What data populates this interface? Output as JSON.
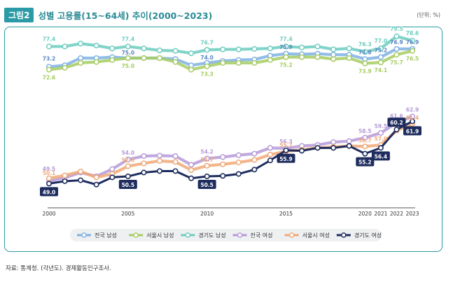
{
  "figure": {
    "badge": "그림2",
    "title": "성별 고용률(15~64세) 추이(2000~2023)",
    "unit": "(단위: %)",
    "source": "자료: 통계청. (각년도). 경제활동인구조사."
  },
  "chart_data": {
    "type": "line",
    "title": "성별 고용률(15~64세) 추이(2000~2023)",
    "unit": "%",
    "x": [
      2000,
      2001,
      2002,
      2003,
      2004,
      2005,
      2006,
      2007,
      2008,
      2009,
      2010,
      2011,
      2012,
      2013,
      2014,
      2015,
      2016,
      2017,
      2018,
      2019,
      2020,
      2021,
      2022,
      2023
    ],
    "xticks": [
      2000,
      2005,
      2010,
      2015,
      2020,
      2021,
      2022,
      2023
    ],
    "ylim": [
      45,
      82
    ],
    "grid": false,
    "legend_position": "bottom",
    "series": [
      {
        "name": "전국 남성",
        "color": "#7fb2e3",
        "values": [
          73.2,
          73.5,
          75.0,
          75.0,
          75.2,
          75.0,
          75.0,
          75.0,
          74.8,
          73.5,
          74.0,
          74.4,
          74.6,
          74.7,
          75.5,
          75.9,
          75.8,
          75.9,
          75.7,
          75.7,
          74.8,
          75.2,
          76.9,
          76.9
        ]
      },
      {
        "name": "서울시 남성",
        "color": "#a6cc62",
        "values": [
          72.6,
          73.0,
          74.0,
          74.2,
          74.6,
          75.0,
          75.0,
          75.0,
          74.2,
          72.6,
          73.3,
          74.0,
          74.0,
          74.0,
          74.6,
          75.2,
          75.2,
          75.2,
          74.8,
          75.0,
          73.9,
          74.1,
          75.7,
          76.5
        ]
      },
      {
        "name": "경기도 남성",
        "color": "#6ccdbf",
        "values": [
          77.4,
          77.4,
          78.0,
          77.6,
          77.0,
          77.4,
          77.0,
          76.6,
          76.5,
          76.0,
          76.7,
          76.8,
          76.8,
          76.9,
          77.0,
          77.4,
          77.2,
          77.4,
          76.8,
          77.0,
          76.3,
          77.0,
          79.5,
          78.6
        ]
      },
      {
        "name": "전국 여성",
        "color": "#b69ad8",
        "values": [
          49.5,
          50.2,
          51.3,
          50.5,
          52.0,
          54.0,
          54.7,
          54.8,
          54.7,
          52.9,
          54.2,
          54.5,
          54.9,
          55.2,
          56.4,
          56.3,
          56.8,
          57.0,
          57.6,
          57.8,
          58.5,
          59.5,
          61.6,
          62.9
        ]
      },
      {
        "name": "서울시 여성",
        "color": "#f0a978",
        "values": [
          50.1,
          50.7,
          51.5,
          50.3,
          51.0,
          52.6,
          53.2,
          53.7,
          53.5,
          51.8,
          52.7,
          53.0,
          53.4,
          53.9,
          55.0,
          55.7,
          56.0,
          56.4,
          56.6,
          56.8,
          56.7,
          57.0,
          60.0,
          61.4
        ]
      },
      {
        "name": "경기도 여성",
        "color": "#1e2d5e",
        "values": [
          49.0,
          49.5,
          49.7,
          48.8,
          50.3,
          50.5,
          51.3,
          51.6,
          51.6,
          50.1,
          50.5,
          50.6,
          51.0,
          51.9,
          53.8,
          55.9,
          55.8,
          56.4,
          56.4,
          56.8,
          55.2,
          56.4,
          60.2,
          61.9
        ]
      }
    ],
    "labels": [
      {
        "series": 3,
        "i": 0,
        "text": "49.5"
      },
      {
        "series": 4,
        "i": 0,
        "text": "50.1"
      },
      {
        "series": 5,
        "i": 0,
        "text": "49.0",
        "box": true
      },
      {
        "series": 0,
        "i": 0,
        "text": "73.2"
      },
      {
        "series": 1,
        "i": 0,
        "text": "72.6"
      },
      {
        "series": 2,
        "i": 0,
        "text": "77.4"
      },
      {
        "series": 2,
        "i": 5,
        "text": "77.4"
      },
      {
        "series": 0,
        "i": 5,
        "text": "75.0"
      },
      {
        "series": 1,
        "i": 5,
        "text": "75.0"
      },
      {
        "series": 3,
        "i": 5,
        "text": "54.0"
      },
      {
        "series": 4,
        "i": 5,
        "text": "52.6"
      },
      {
        "series": 5,
        "i": 5,
        "text": "50.5",
        "box": true
      },
      {
        "series": 2,
        "i": 10,
        "text": "76.7"
      },
      {
        "series": 0,
        "i": 10,
        "text": "74.0"
      },
      {
        "series": 1,
        "i": 10,
        "text": "73.3"
      },
      {
        "series": 3,
        "i": 10,
        "text": "54.2"
      },
      {
        "series": 4,
        "i": 10,
        "text": "52.7"
      },
      {
        "series": 5,
        "i": 10,
        "text": "50.5",
        "box": true
      },
      {
        "series": 2,
        "i": 15,
        "text": "77.4"
      },
      {
        "series": 0,
        "i": 15,
        "text": "75.9"
      },
      {
        "series": 1,
        "i": 15,
        "text": "75.2"
      },
      {
        "series": 3,
        "i": 15,
        "text": "56.3"
      },
      {
        "series": 4,
        "i": 15,
        "text": "55.7"
      },
      {
        "series": 5,
        "i": 15,
        "text": "55.9",
        "box": true
      },
      {
        "series": 2,
        "i": 20,
        "text": "76.3"
      },
      {
        "series": 0,
        "i": 20,
        "text": "74.8"
      },
      {
        "series": 1,
        "i": 20,
        "text": "73.9"
      },
      {
        "series": 3,
        "i": 20,
        "text": "58.5"
      },
      {
        "series": 4,
        "i": 20,
        "text": "56.7"
      },
      {
        "series": 5,
        "i": 20,
        "text": "55.2",
        "box": true
      },
      {
        "series": 2,
        "i": 21,
        "text": "77.0"
      },
      {
        "series": 0,
        "i": 21,
        "text": "75.2"
      },
      {
        "series": 1,
        "i": 21,
        "text": "74.1"
      },
      {
        "series": 3,
        "i": 21,
        "text": "59.5"
      },
      {
        "series": 4,
        "i": 21,
        "text": "57.0"
      },
      {
        "series": 5,
        "i": 21,
        "text": "56.4",
        "box": true
      },
      {
        "series": 2,
        "i": 22,
        "text": "79.5"
      },
      {
        "series": 0,
        "i": 22,
        "text": "76.9"
      },
      {
        "series": 1,
        "i": 22,
        "text": "75.7"
      },
      {
        "series": 3,
        "i": 22,
        "text": "61.6"
      },
      {
        "series": 4,
        "i": 22,
        "text": "60.0"
      },
      {
        "series": 5,
        "i": 22,
        "text": "60.2",
        "box": true
      },
      {
        "series": 2,
        "i": 23,
        "text": "78.6"
      },
      {
        "series": 0,
        "i": 23,
        "text": "76.9"
      },
      {
        "series": 1,
        "i": 23,
        "text": "76.5"
      },
      {
        "series": 3,
        "i": 23,
        "text": "62.9"
      },
      {
        "series": 4,
        "i": 23,
        "text": "61.4"
      },
      {
        "series": 5,
        "i": 23,
        "text": "61.9",
        "box": true
      }
    ]
  }
}
